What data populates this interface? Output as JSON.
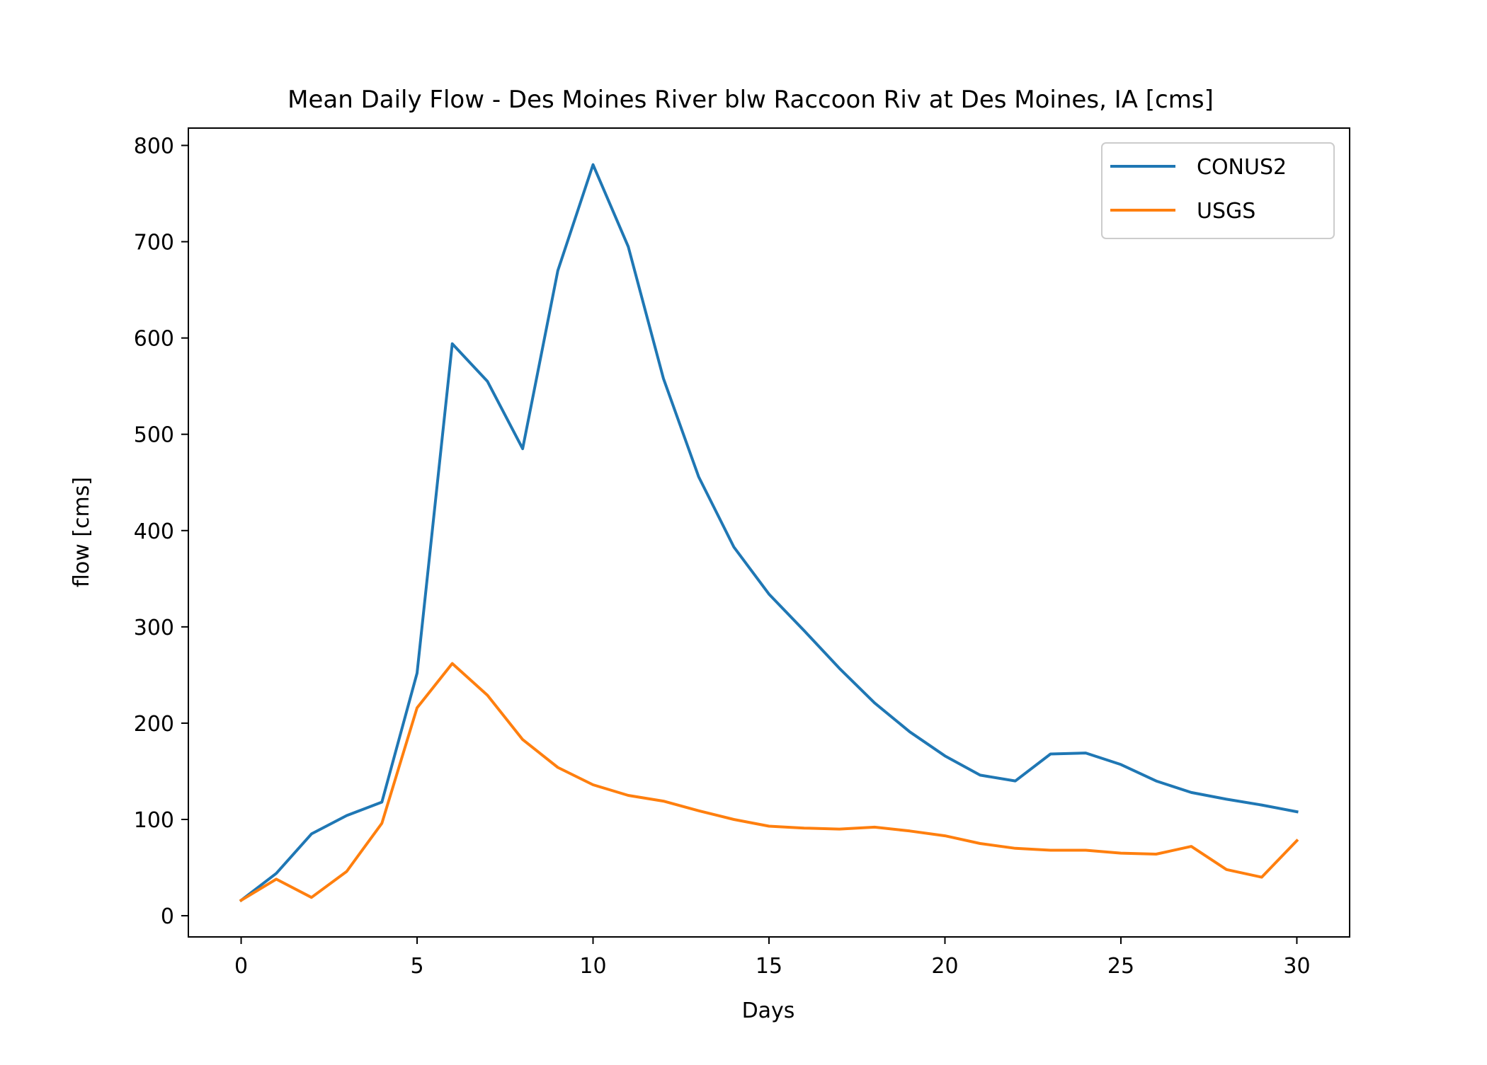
{
  "chart_data": {
    "type": "line",
    "title": "Mean Daily Flow - Des Moines River blw Raccoon Riv at Des Moines, IA [cms]",
    "xlabel": "Days",
    "ylabel": "flow [cms]",
    "xlim": [
      -1.5,
      31.5
    ],
    "ylim": [
      -22,
      818
    ],
    "xticks": [
      0,
      5,
      10,
      15,
      20,
      25,
      30
    ],
    "yticks": [
      0,
      100,
      200,
      300,
      400,
      500,
      600,
      700,
      800
    ],
    "grid": false,
    "legend_position": "top-right",
    "x": [
      0,
      1,
      2,
      3,
      4,
      5,
      6,
      7,
      8,
      9,
      10,
      11,
      12,
      13,
      14,
      15,
      16,
      17,
      18,
      19,
      20,
      21,
      22,
      23,
      24,
      25,
      26,
      27,
      28,
      29,
      30
    ],
    "series": [
      {
        "name": "CONUS2",
        "color": "#1f77b4",
        "values": [
          16,
          44,
          85,
          104,
          118,
          252,
          594,
          555,
          485,
          670,
          780,
          695,
          558,
          456,
          383,
          334,
          296,
          257,
          221,
          191,
          166,
          146,
          140,
          168,
          169,
          157,
          140,
          128,
          121,
          115,
          108
        ]
      },
      {
        "name": "USGS",
        "color": "#ff7f0e",
        "values": [
          16,
          38,
          19,
          46,
          96,
          216,
          262,
          229,
          183,
          154,
          136,
          125,
          119,
          109,
          100,
          93,
          91,
          90,
          92,
          88,
          83,
          75,
          70,
          68,
          68,
          65,
          64,
          72,
          48,
          40,
          78
        ]
      }
    ]
  }
}
